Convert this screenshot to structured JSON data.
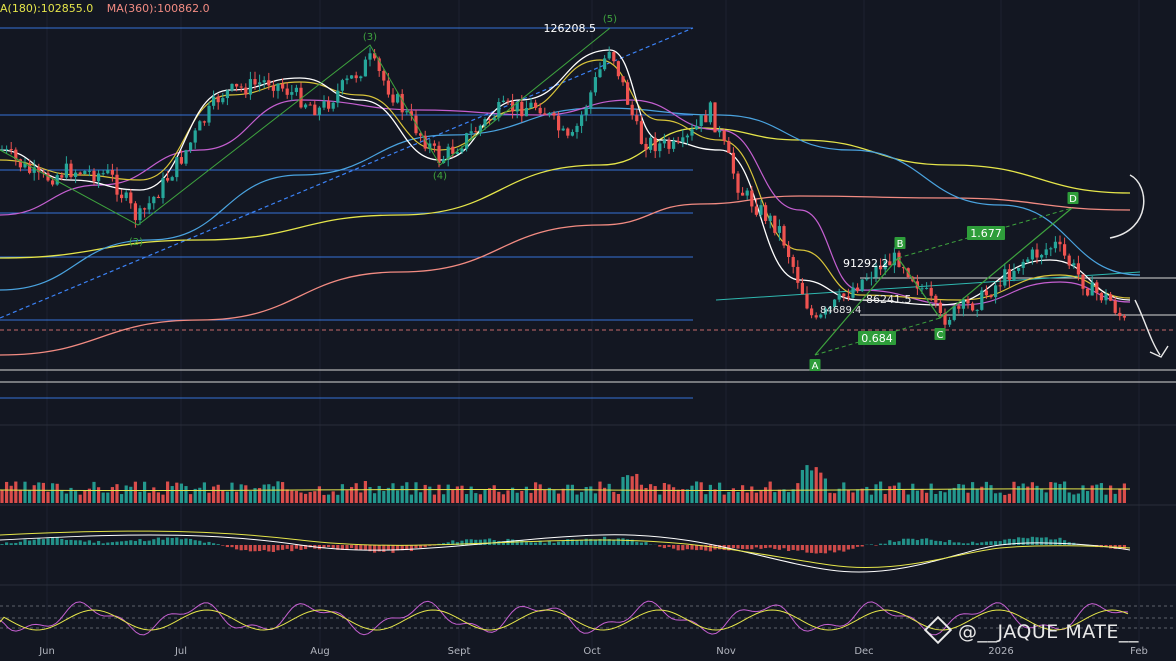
{
  "legend": {
    "ma180": "A(180):102855.0",
    "ma360": "MA(360):100862.0",
    "ma180_color": "#e5e54a",
    "ma360_color": "#f28b82"
  },
  "watermark": "@__JAQUE MATE__",
  "chart_data": {
    "type": "candlestick",
    "x_axis_labels": [
      "Jun",
      "Jul",
      "Aug",
      "Sept",
      "Oct",
      "Nov",
      "Dec",
      "2026",
      "Feb"
    ],
    "price_annotations": [
      {
        "label": "126208.5",
        "price": 126208.5
      },
      {
        "label": "91292.2",
        "price": 91292.2
      },
      {
        "label": "86241.5",
        "price": 86241.5
      },
      {
        "label": "84689.4",
        "price": 84689.4
      }
    ],
    "wave_labels": [
      "(2)",
      "(3)",
      "(4)",
      "(5)"
    ],
    "harmonic_points": [
      "A",
      "B",
      "C",
      "D"
    ],
    "ratios": [
      "1.677",
      "0.684"
    ],
    "colors": {
      "background": "#131722",
      "up": "#26a69a",
      "down": "#ef5350",
      "white_ma": "#ffffff",
      "yellow_ma": "#e5e54a",
      "magenta_ma": "#c45fd0",
      "blue_ma": "#4aa3df",
      "pattern_green": "#3ea33e",
      "fib_blue": "#3b82f6"
    }
  }
}
